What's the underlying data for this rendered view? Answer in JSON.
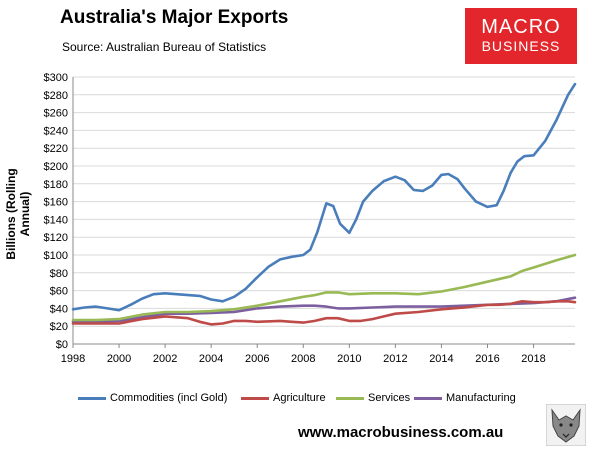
{
  "header": {
    "title": "Australia's Major Exports",
    "source": "Source:  Australian Bureau of Statistics"
  },
  "logo": {
    "line1": "MACRO",
    "line2": "BUSINESS",
    "color": "#e3262b"
  },
  "footer": {
    "url": "www.macrobusiness.com.au"
  },
  "chart_data": {
    "type": "line",
    "title": "Australia's Major Exports",
    "ylabel": "Billions (Rolling Annual)",
    "xlabel": "",
    "ylim": [
      0,
      300
    ],
    "xlim": [
      1998,
      2019.8
    ],
    "yticks": [
      0,
      20,
      40,
      60,
      80,
      100,
      120,
      140,
      160,
      180,
      200,
      220,
      240,
      260,
      280,
      300
    ],
    "ytick_labels": [
      "$0",
      "$20",
      "$40",
      "$60",
      "$80",
      "$100",
      "$120",
      "$140",
      "$160",
      "$180",
      "$200",
      "$220",
      "$240",
      "$260",
      "$280",
      "$300"
    ],
    "xticks": [
      1998,
      2000,
      2002,
      2004,
      2006,
      2008,
      2010,
      2012,
      2014,
      2016,
      2018
    ],
    "xtick_labels": [
      "1998",
      "2000",
      "2002",
      "2004",
      "2006",
      "2008",
      "2010",
      "2012",
      "2014",
      "2016",
      "2018"
    ],
    "grid": "horizontal",
    "legend_position": "bottom",
    "series": [
      {
        "name": "Commodities (incl Gold)",
        "color": "#4a7ebb",
        "x": [
          1998,
          1998.5,
          1999,
          1999.5,
          2000,
          2000.5,
          2001,
          2001.5,
          2002,
          2002.5,
          2003,
          2003.5,
          2004,
          2004.5,
          2005,
          2005.5,
          2006,
          2006.5,
          2007,
          2007.5,
          2008,
          2008.3,
          2008.6,
          2009,
          2009.3,
          2009.6,
          2010,
          2010.3,
          2010.6,
          2011,
          2011.5,
          2012,
          2012.4,
          2012.8,
          2013.2,
          2013.6,
          2014,
          2014.3,
          2014.7,
          2015,
          2015.5,
          2016,
          2016.4,
          2016.7,
          2017,
          2017.3,
          2017.6,
          2018,
          2018.5,
          2019,
          2019.5,
          2019.8
        ],
        "values": [
          39,
          41,
          42,
          40,
          38,
          44,
          51,
          56,
          57,
          56,
          55,
          54,
          50,
          48,
          53,
          62,
          75,
          87,
          95,
          98,
          100,
          106,
          125,
          158,
          155,
          135,
          125,
          140,
          160,
          172,
          183,
          188,
          184,
          173,
          172,
          178,
          190,
          191,
          185,
          175,
          160,
          154,
          156,
          172,
          192,
          205,
          211,
          212,
          228,
          252,
          280,
          292
        ]
      },
      {
        "name": "Agriculture",
        "color": "#be4b48",
        "x": [
          1998,
          1999,
          2000,
          2001,
          2002,
          2002.5,
          2003,
          2003.5,
          2004,
          2004.5,
          2005,
          2005.5,
          2006,
          2007,
          2007.5,
          2008,
          2008.5,
          2009,
          2009.5,
          2010,
          2010.5,
          2011,
          2011.5,
          2012,
          2013,
          2014,
          2015,
          2016,
          2016.5,
          2017,
          2017.5,
          2018,
          2018.5,
          2019,
          2019.5,
          2019.8
        ],
        "values": [
          23,
          23,
          23,
          28,
          31,
          30,
          29,
          25,
          22,
          23,
          26,
          26,
          25,
          26,
          25,
          24,
          26,
          29,
          29,
          26,
          26,
          28,
          31,
          34,
          36,
          39,
          41,
          44,
          44,
          45,
          48,
          47,
          47,
          48,
          48,
          47
        ]
      },
      {
        "name": "Services",
        "color": "#98b954",
        "x": [
          1998,
          1999,
          2000,
          2001,
          2002,
          2003,
          2004,
          2005,
          2006,
          2007,
          2008,
          2008.5,
          2009,
          2009.5,
          2010,
          2011,
          2012,
          2013,
          2014,
          2015,
          2016,
          2017,
          2017.5,
          2018,
          2019,
          2019.8
        ],
        "values": [
          27,
          27,
          28,
          33,
          36,
          36,
          37,
          39,
          43,
          48,
          53,
          55,
          58,
          58,
          56,
          57,
          57,
          56,
          59,
          64,
          70,
          76,
          82,
          86,
          94,
          100
        ]
      },
      {
        "name": "Manufacturing",
        "color": "#7d5fa0",
        "x": [
          1998,
          1999,
          2000,
          2001,
          2002,
          2003,
          2004,
          2005,
          2006,
          2007,
          2008,
          2008.5,
          2009,
          2009.5,
          2010,
          2011,
          2012,
          2013,
          2014,
          2015,
          2016,
          2017,
          2018,
          2019,
          2019.8
        ],
        "values": [
          25,
          25,
          26,
          30,
          34,
          34,
          35,
          36,
          40,
          42,
          43,
          43,
          42,
          40,
          40,
          41,
          42,
          42,
          42,
          43,
          44,
          45,
          46,
          48,
          52
        ]
      }
    ]
  },
  "legend": [
    {
      "label": "Commodities (incl Gold)",
      "color": "#4a7ebb"
    },
    {
      "label": "Agriculture",
      "color": "#be4b48"
    },
    {
      "label": "Services",
      "color": "#98b954"
    },
    {
      "label": "Manufacturing",
      "color": "#7d5fa0"
    }
  ]
}
